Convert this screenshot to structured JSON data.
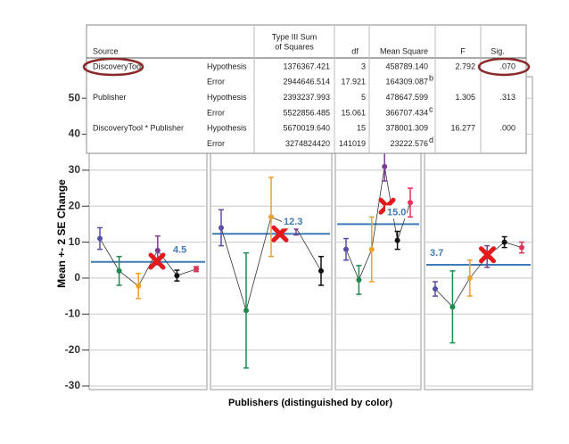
{
  "table": {
    "header": [
      "Source",
      [
        "Type III Sum",
        "of Squares"
      ],
      "df",
      "Mean Square",
      "F",
      "Sig."
    ],
    "rows": [
      [
        "DiscoveryTool",
        "Hypothesis",
        "1376367.421",
        "3",
        "458789.140",
        "",
        "2.792",
        ".070"
      ],
      [
        "",
        "Error",
        "2944646.514",
        "17.921",
        "164309.087",
        "b",
        "",
        ""
      ],
      [
        "Publisher",
        "Hypothesis",
        "2393237.993",
        "5",
        "478647.599",
        "",
        "1.305",
        ".313"
      ],
      [
        "",
        "Error",
        "5522856.485",
        "15.061",
        "366707.434",
        "c",
        "",
        ""
      ],
      [
        "DiscoveryTool * Publisher",
        "Hypothesis",
        "5670019.640",
        "15",
        "378001.309",
        "",
        "16.277",
        ".000"
      ],
      [
        "",
        "Error",
        "3274824420",
        "141019",
        "23222.576",
        "d",
        "",
        ""
      ]
    ]
  },
  "chart_data": {
    "type": "errorbar",
    "y_label": "Mean +- 2 SE Change",
    "x_label": "Publishers (distinguished by color)",
    "ylim": [
      -31,
      56
    ],
    "yticks": [
      -30,
      -20,
      -10,
      0,
      10,
      20,
      30,
      40,
      50
    ],
    "grid": true,
    "series_colors": [
      "#5a4fa8",
      "#1d8a4e",
      "#f0a030",
      "#7a3d92",
      "#111111",
      "#d8385a"
    ],
    "mean_color": "#3e7bb6",
    "marker_color": "#e4191b",
    "panels": [
      {
        "values": [
          11,
          2,
          -2.2,
          7.7,
          0.7,
          2.5
        ],
        "errors": [
          3,
          4,
          3.5,
          4,
          1.5,
          0.7
        ],
        "mean": 4.5,
        "mean_label": "4.5",
        "marker": 4.7
      },
      {
        "values": [
          14,
          -9,
          17,
          14,
          2
        ],
        "errors": [
          5,
          16,
          11,
          2,
          4
        ],
        "mean": 12.3,
        "mean_label": "12.3",
        "marker": 12.3
      },
      {
        "values": [
          8,
          -0.5,
          8,
          31,
          10.5,
          21
        ],
        "errors": [
          3,
          4,
          9,
          4,
          2.5,
          4
        ],
        "mean": 15,
        "mean_label": "15.0",
        "marker": 20
      },
      {
        "values": [
          -3,
          -8,
          0,
          6,
          10,
          8.5
        ],
        "errors": [
          2,
          10,
          5,
          3,
          1.5,
          1.5
        ],
        "mean": 3.7,
        "mean_label": "3.7",
        "marker": 6.5
      }
    ]
  }
}
